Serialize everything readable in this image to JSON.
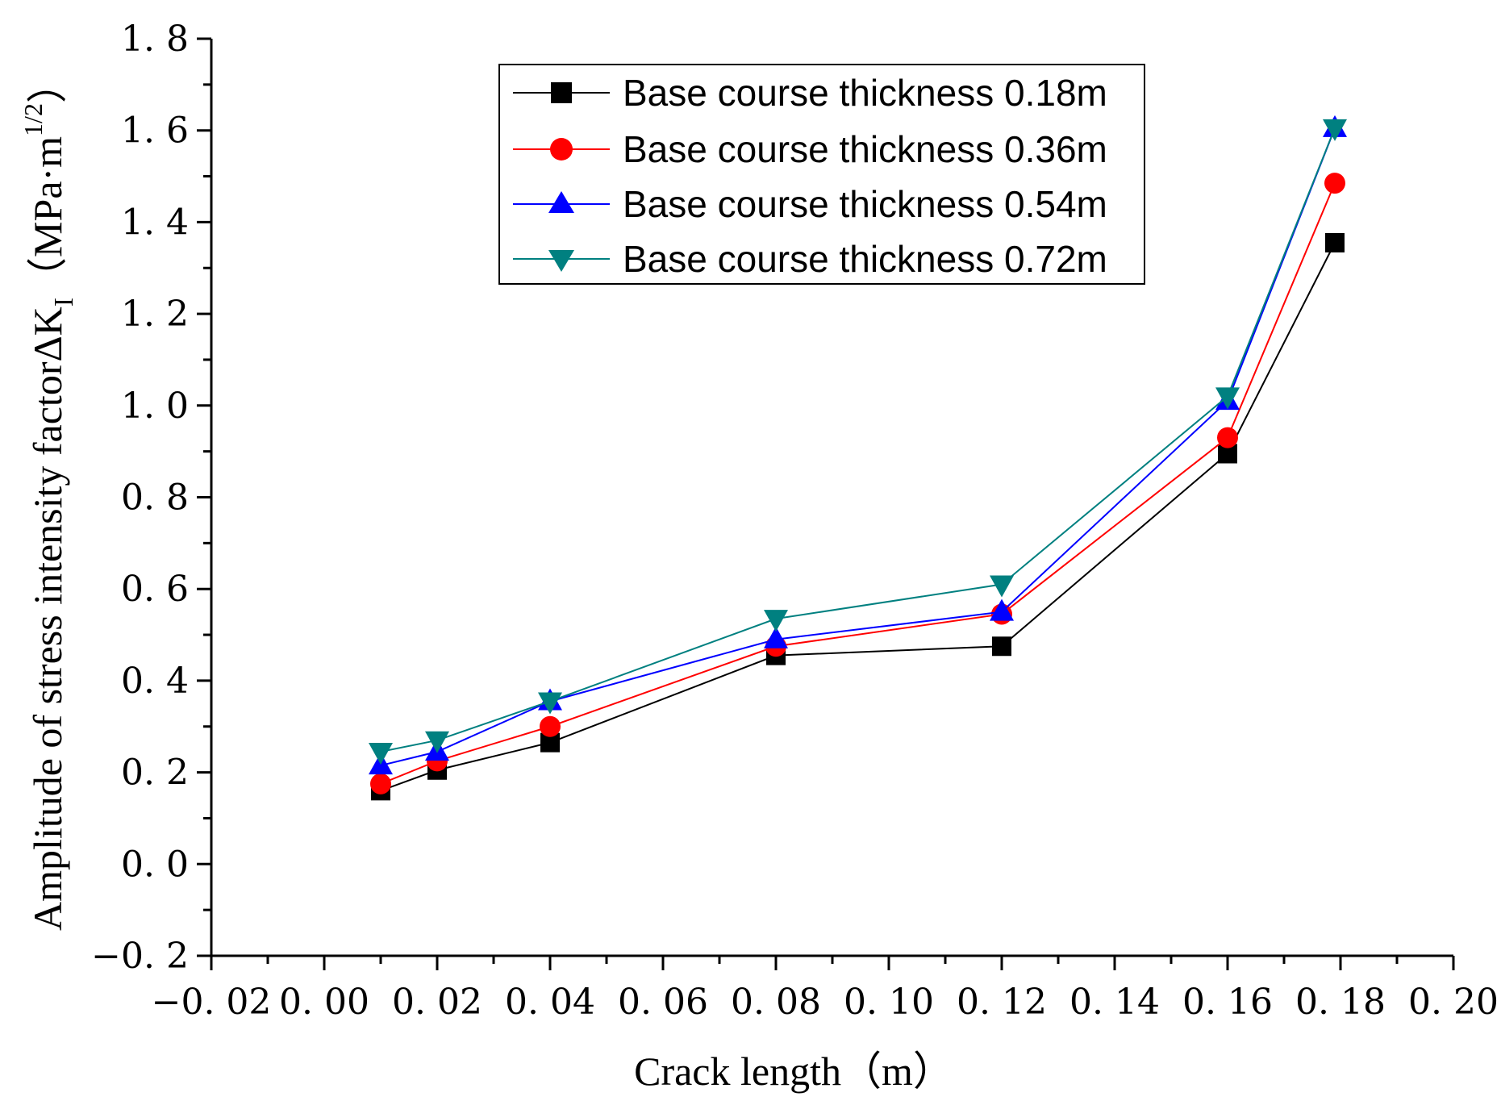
{
  "chart_data": {
    "type": "line",
    "title": "",
    "xlabel": "Crack length（m）",
    "ylabel": "Amplitude of stress intensity factorΔK",
    "ylabel_subscript": "I",
    "ylabel_unit_open": "（MPa·m",
    "ylabel_unit_sup": "1/2",
    "ylabel_unit_close": "）",
    "xlim": [
      -0.02,
      0.2
    ],
    "ylim": [
      -0.2,
      1.8
    ],
    "x_ticks": [
      "−0. 02",
      "0. 00",
      "0. 02",
      "0. 04",
      "0. 06",
      "0. 08",
      "0. 10",
      "0. 12",
      "0. 14",
      "0. 16",
      "0. 18",
      "0. 20"
    ],
    "y_ticks": [
      "−0. 2",
      "0. 0",
      "0. 2",
      "0. 4",
      "0. 6",
      "0. 8",
      "1. 0",
      "1. 2",
      "1. 4",
      "1. 6",
      "1. 8"
    ],
    "grid": false,
    "legend_position": "top-center",
    "x": [
      0.01,
      0.02,
      0.04,
      0.08,
      0.12,
      0.16,
      0.179
    ],
    "series": [
      {
        "name": "Base course thickness 0.18m",
        "color": "#000000",
        "marker": "square",
        "values": [
          0.16,
          0.205,
          0.265,
          0.455,
          0.475,
          0.895,
          1.355
        ]
      },
      {
        "name": "Base course thickness 0.36m",
        "color": "#ff0000",
        "marker": "circle",
        "values": [
          0.175,
          0.225,
          0.3,
          0.475,
          0.545,
          0.93,
          1.485
        ]
      },
      {
        "name": "Base course thickness 0.54m",
        "color": "#0000ff",
        "marker": "triangle-up",
        "values": [
          0.215,
          0.245,
          0.355,
          0.49,
          0.55,
          1.01,
          1.605
        ]
      },
      {
        "name": "Base course thickness 0.72m",
        "color": "#008080",
        "marker": "triangle-down",
        "values": [
          0.245,
          0.27,
          0.355,
          0.535,
          0.61,
          1.02,
          1.605
        ]
      }
    ]
  }
}
